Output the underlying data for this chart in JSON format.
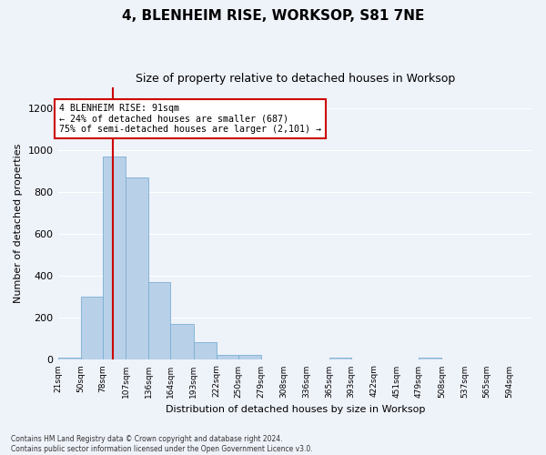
{
  "title": "4, BLENHEIM RISE, WORKSOP, S81 7NE",
  "subtitle": "Size of property relative to detached houses in Worksop",
  "xlabel": "Distribution of detached houses by size in Worksop",
  "ylabel": "Number of detached properties",
  "bar_edges": [
    21,
    50,
    78,
    107,
    136,
    164,
    193,
    222,
    250,
    279,
    308,
    336,
    365,
    393,
    422,
    451,
    479,
    508,
    537,
    565,
    594
  ],
  "bar_labels": [
    "21sqm",
    "50sqm",
    "78sqm",
    "107sqm",
    "136sqm",
    "164sqm",
    "193sqm",
    "222sqm",
    "250sqm",
    "279sqm",
    "308sqm",
    "336sqm",
    "365sqm",
    "393sqm",
    "422sqm",
    "451sqm",
    "479sqm",
    "508sqm",
    "537sqm",
    "565sqm",
    "594sqm"
  ],
  "bar_heights": [
    10,
    300,
    970,
    870,
    370,
    170,
    85,
    25,
    25,
    0,
    0,
    0,
    10,
    0,
    0,
    0,
    10,
    0,
    0,
    0,
    0
  ],
  "bar_color": "#b8d0e8",
  "bar_edge_color": "#7aafd4",
  "vline_x": 91,
  "vline_color": "#cc0000",
  "annotation_text": "4 BLENHEIM RISE: 91sqm\n← 24% of detached houses are smaller (687)\n75% of semi-detached houses are larger (2,101) →",
  "annotation_box_color": "#cc0000",
  "ylim": [
    0,
    1300
  ],
  "yticks": [
    0,
    200,
    400,
    600,
    800,
    1000,
    1200
  ],
  "background_color": "#eef2f9",
  "grid_color": "#ffffff",
  "footnote": "Contains HM Land Registry data © Crown copyright and database right 2024.\nContains public sector information licensed under the Open Government Licence v3.0."
}
